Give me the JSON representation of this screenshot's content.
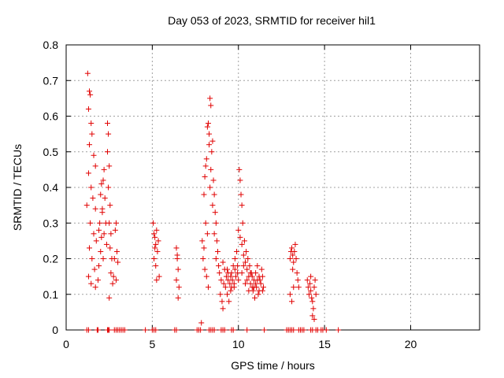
{
  "chart_data": {
    "type": "scatter",
    "title": "Day 053 of 2023, SRMTID for receiver hil1",
    "xlabel": "GPS time / hours",
    "ylabel": "SRMTID / TECUs",
    "xlim": [
      0,
      24
    ],
    "ylim": [
      0,
      0.8
    ],
    "xticks": [
      0,
      5,
      10,
      15,
      20
    ],
    "yticks": [
      0,
      0.1,
      0.2,
      0.3,
      0.4,
      0.5,
      0.6,
      0.7,
      0.8
    ],
    "grid": true,
    "marker": "plus",
    "color": "#e00000",
    "series": [
      {
        "name": "hil1",
        "points": [
          [
            1.25,
            0.72
          ],
          [
            1.35,
            0.67
          ],
          [
            1.4,
            0.66
          ],
          [
            1.3,
            0.62
          ],
          [
            1.45,
            0.58
          ],
          [
            1.5,
            0.55
          ],
          [
            1.35,
            0.52
          ],
          [
            1.6,
            0.49
          ],
          [
            1.7,
            0.46
          ],
          [
            1.3,
            0.44
          ],
          [
            1.45,
            0.4
          ],
          [
            1.55,
            0.37
          ],
          [
            1.7,
            0.34
          ],
          [
            1.4,
            0.3
          ],
          [
            1.6,
            0.27
          ],
          [
            1.75,
            0.25
          ],
          [
            1.35,
            0.23
          ],
          [
            1.5,
            0.2
          ],
          [
            1.65,
            0.17
          ],
          [
            1.3,
            0.15
          ],
          [
            1.45,
            0.13
          ],
          [
            1.7,
            0.12
          ],
          [
            1.85,
            0.14
          ],
          [
            1.9,
            0.18
          ],
          [
            2.0,
            0.22
          ],
          [
            2.05,
            0.26
          ],
          [
            1.95,
            0.3
          ],
          [
            2.1,
            0.34
          ],
          [
            2.0,
            0.38
          ],
          [
            2.15,
            0.42
          ],
          [
            2.2,
            0.45
          ],
          [
            2.05,
            0.41
          ],
          [
            2.25,
            0.37
          ],
          [
            2.1,
            0.33
          ],
          [
            2.3,
            0.3
          ],
          [
            2.2,
            0.27
          ],
          [
            2.35,
            0.24
          ],
          [
            2.15,
            0.2
          ],
          [
            2.4,
            0.58
          ],
          [
            2.45,
            0.55
          ],
          [
            2.4,
            0.5
          ],
          [
            2.5,
            0.46
          ],
          [
            2.45,
            0.4
          ],
          [
            2.55,
            0.35
          ],
          [
            2.5,
            0.3
          ],
          [
            2.6,
            0.27
          ],
          [
            2.55,
            0.23
          ],
          [
            2.65,
            0.2
          ],
          [
            2.6,
            0.16
          ],
          [
            2.7,
            0.13
          ],
          [
            2.5,
            0.09
          ],
          [
            2.75,
            0.15
          ],
          [
            2.8,
            0.2
          ],
          [
            2.85,
            0.28
          ],
          [
            2.9,
            0.3
          ],
          [
            2.95,
            0.22
          ],
          [
            3.0,
            0.19
          ],
          [
            2.9,
            0.14
          ],
          [
            1.2,
            0.35
          ],
          [
            1.9,
            0.28
          ],
          [
            5.05,
            0.3
          ],
          [
            5.1,
            0.27
          ],
          [
            5.15,
            0.26
          ],
          [
            5.2,
            0.24
          ],
          [
            5.25,
            0.28
          ],
          [
            5.3,
            0.22
          ],
          [
            5.1,
            0.2
          ],
          [
            5.2,
            0.18
          ],
          [
            5.35,
            0.25
          ],
          [
            5.4,
            0.15
          ],
          [
            5.25,
            0.14
          ],
          [
            5.15,
            0.23
          ],
          [
            6.4,
            0.23
          ],
          [
            6.45,
            0.2
          ],
          [
            6.5,
            0.17
          ],
          [
            6.4,
            0.14
          ],
          [
            6.55,
            0.12
          ],
          [
            6.5,
            0.09
          ],
          [
            6.45,
            0.21
          ],
          [
            7.9,
            0.25
          ],
          [
            8.0,
            0.38
          ],
          [
            8.05,
            0.43
          ],
          [
            8.1,
            0.46
          ],
          [
            8.15,
            0.48
          ],
          [
            8.2,
            0.57
          ],
          [
            8.25,
            0.58
          ],
          [
            8.3,
            0.55
          ],
          [
            8.35,
            0.65
          ],
          [
            8.4,
            0.63
          ],
          [
            8.3,
            0.52
          ],
          [
            8.45,
            0.5
          ],
          [
            8.5,
            0.53
          ],
          [
            8.4,
            0.45
          ],
          [
            8.55,
            0.42
          ],
          [
            8.6,
            0.38
          ],
          [
            8.5,
            0.35
          ],
          [
            8.65,
            0.33
          ],
          [
            8.7,
            0.3
          ],
          [
            8.6,
            0.27
          ],
          [
            8.75,
            0.25
          ],
          [
            8.8,
            0.22
          ],
          [
            8.7,
            0.2
          ],
          [
            8.85,
            0.18
          ],
          [
            8.9,
            0.16
          ],
          [
            9.0,
            0.14
          ],
          [
            8.95,
            0.1
          ],
          [
            9.05,
            0.08
          ],
          [
            9.1,
            0.06
          ],
          [
            8.1,
            0.3
          ],
          [
            8.2,
            0.27
          ],
          [
            7.95,
            0.2
          ],
          [
            8.05,
            0.17
          ],
          [
            8.15,
            0.15
          ],
          [
            8.25,
            0.12
          ],
          [
            7.85,
            0.02
          ],
          [
            8.0,
            0.23
          ],
          [
            8.35,
            0.4
          ],
          [
            9.2,
            0.17
          ],
          [
            9.3,
            0.15
          ],
          [
            9.4,
            0.14
          ],
          [
            9.5,
            0.13
          ],
          [
            9.6,
            0.16
          ],
          [
            9.7,
            0.18
          ],
          [
            9.8,
            0.2
          ],
          [
            9.9,
            0.22
          ],
          [
            10.0,
            0.28
          ],
          [
            10.1,
            0.26
          ],
          [
            10.2,
            0.24
          ],
          [
            10.3,
            0.21
          ],
          [
            10.4,
            0.19
          ],
          [
            10.5,
            0.17
          ],
          [
            10.6,
            0.15
          ],
          [
            10.7,
            0.13
          ],
          [
            10.8,
            0.12
          ],
          [
            10.9,
            0.14
          ],
          [
            11.0,
            0.16
          ],
          [
            11.1,
            0.18
          ],
          [
            11.2,
            0.15
          ],
          [
            11.3,
            0.13
          ],
          [
            11.4,
            0.11
          ],
          [
            9.25,
            0.12
          ],
          [
            9.35,
            0.1
          ],
          [
            9.45,
            0.08
          ],
          [
            9.55,
            0.11
          ],
          [
            9.65,
            0.14
          ],
          [
            9.75,
            0.12
          ],
          [
            9.85,
            0.15
          ],
          [
            9.95,
            0.18
          ],
          [
            10.05,
            0.45
          ],
          [
            10.1,
            0.42
          ],
          [
            10.15,
            0.38
          ],
          [
            10.2,
            0.35
          ],
          [
            10.25,
            0.3
          ],
          [
            10.35,
            0.25
          ],
          [
            10.45,
            0.22
          ],
          [
            10.55,
            0.2
          ],
          [
            10.65,
            0.18
          ],
          [
            10.75,
            0.16
          ],
          [
            10.85,
            0.11
          ],
          [
            10.95,
            0.09
          ],
          [
            11.05,
            0.12
          ],
          [
            11.15,
            0.1
          ],
          [
            11.25,
            0.14
          ],
          [
            11.35,
            0.17
          ],
          [
            11.45,
            0.12
          ],
          [
            9.15,
            0.13
          ],
          [
            9.4,
            0.16
          ],
          [
            9.6,
            0.12
          ],
          [
            9.8,
            0.17
          ],
          [
            10.0,
            0.14
          ],
          [
            10.2,
            0.16
          ],
          [
            10.4,
            0.13
          ],
          [
            10.6,
            0.11
          ],
          [
            10.8,
            0.15
          ],
          [
            11.0,
            0.13
          ],
          [
            11.2,
            0.11
          ],
          [
            11.4,
            0.15
          ],
          [
            9.1,
            0.19
          ],
          [
            9.35,
            0.17
          ],
          [
            9.55,
            0.15
          ],
          [
            9.75,
            0.13
          ],
          [
            9.95,
            0.16
          ],
          [
            10.3,
            0.18
          ],
          [
            10.5,
            0.14
          ],
          [
            10.7,
            0.16
          ],
          [
            10.9,
            0.12
          ],
          [
            11.1,
            0.14
          ],
          [
            13.0,
            0.2
          ],
          [
            13.05,
            0.22
          ],
          [
            13.1,
            0.23
          ],
          [
            13.15,
            0.21
          ],
          [
            13.2,
            0.19
          ],
          [
            13.25,
            0.22
          ],
          [
            13.3,
            0.24
          ],
          [
            13.35,
            0.2
          ],
          [
            13.4,
            0.16
          ],
          [
            13.45,
            0.14
          ],
          [
            13.5,
            0.12
          ],
          [
            13.0,
            0.1
          ],
          [
            13.1,
            0.08
          ],
          [
            13.2,
            0.12
          ],
          [
            13.15,
            0.17
          ],
          [
            14.0,
            0.14
          ],
          [
            14.05,
            0.12
          ],
          [
            14.1,
            0.1
          ],
          [
            14.15,
            0.13
          ],
          [
            14.2,
            0.11
          ],
          [
            14.25,
            0.09
          ],
          [
            14.3,
            0.08
          ],
          [
            14.35,
            0.06
          ],
          [
            14.4,
            0.12
          ],
          [
            14.45,
            0.14
          ],
          [
            14.5,
            0.1
          ],
          [
            14.2,
            0.15
          ],
          [
            14.3,
            0.04
          ],
          [
            14.4,
            0.03
          ],
          [
            1.2,
            0
          ],
          [
            1.3,
            0
          ],
          [
            1.8,
            0
          ],
          [
            1.85,
            0
          ],
          [
            2.4,
            0
          ],
          [
            2.45,
            0
          ],
          [
            2.5,
            0
          ],
          [
            2.8,
            0
          ],
          [
            2.9,
            0
          ],
          [
            3.0,
            0
          ],
          [
            3.1,
            0
          ],
          [
            3.2,
            0
          ],
          [
            3.3,
            0
          ],
          [
            3.4,
            0
          ],
          [
            4.6,
            0
          ],
          [
            5.0,
            0
          ],
          [
            5.1,
            0
          ],
          [
            5.2,
            0
          ],
          [
            6.3,
            0
          ],
          [
            6.4,
            0
          ],
          [
            7.6,
            0
          ],
          [
            7.7,
            0
          ],
          [
            7.8,
            0
          ],
          [
            8.3,
            0
          ],
          [
            8.4,
            0
          ],
          [
            8.5,
            0
          ],
          [
            8.6,
            0
          ],
          [
            9.0,
            0
          ],
          [
            9.1,
            0
          ],
          [
            9.2,
            0
          ],
          [
            9.6,
            0
          ],
          [
            9.7,
            0
          ],
          [
            10.5,
            0
          ],
          [
            11.5,
            0
          ],
          [
            12.8,
            0
          ],
          [
            12.9,
            0
          ],
          [
            13.0,
            0
          ],
          [
            13.1,
            0
          ],
          [
            13.2,
            0
          ],
          [
            13.5,
            0
          ],
          [
            13.6,
            0
          ],
          [
            13.7,
            0
          ],
          [
            13.8,
            0
          ],
          [
            14.2,
            0
          ],
          [
            14.3,
            0
          ],
          [
            14.5,
            0
          ],
          [
            14.6,
            0
          ],
          [
            14.8,
            0
          ],
          [
            14.9,
            0
          ],
          [
            15.1,
            0
          ],
          [
            15.8,
            0
          ]
        ]
      }
    ]
  }
}
